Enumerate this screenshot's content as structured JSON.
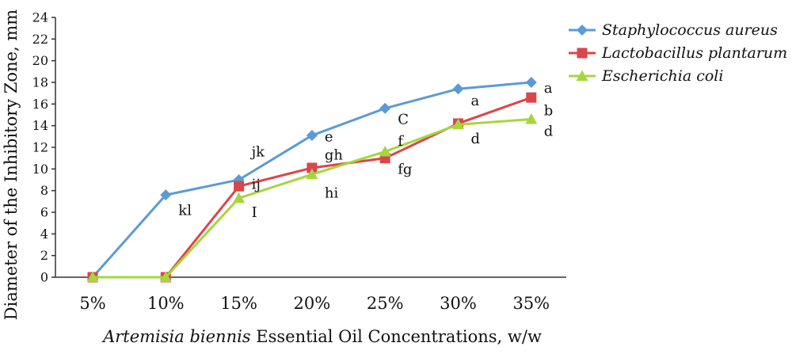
{
  "chart_data": {
    "type": "line",
    "categories": [
      "5%",
      "10%",
      "15%",
      "20%",
      "25%",
      "30%",
      "35%"
    ],
    "ylabel": "Diameter of the Inhibitory Zone, mm",
    "xlabel_italic": "Artemisia biennis",
    "xlabel_rest": " Essential Oil Concentrations, w/w",
    "ylim": [
      0,
      24
    ],
    "yticks": [
      0,
      2,
      4,
      6,
      8,
      10,
      12,
      14,
      16,
      18,
      20,
      22,
      24
    ],
    "grid": false,
    "legend_position": "top-right",
    "series": [
      {
        "name": "Staphylococcus aureus",
        "color": "#5b9bd5",
        "marker": "diamond",
        "values": [
          0,
          7.6,
          9.0,
          13.1,
          15.6,
          17.4,
          18.0
        ]
      },
      {
        "name": "Lactobacillus plantarum",
        "color": "#d9464b",
        "marker": "square",
        "values": [
          0,
          0,
          8.4,
          10.1,
          11.0,
          14.2,
          16.6
        ]
      },
      {
        "name": "Escherichia coli",
        "color": "#a6d63d",
        "marker": "triangle",
        "values": [
          0,
          0,
          7.3,
          9.5,
          11.6,
          14.1,
          14.6
        ]
      }
    ],
    "annotations": [
      {
        "text": "kl",
        "cat": 1,
        "y": 6.2
      },
      {
        "text": "jk",
        "cat": 2,
        "y": 11.6
      },
      {
        "text": "ij",
        "cat": 2,
        "y": 8.6
      },
      {
        "text": "I",
        "cat": 2,
        "y": 6.0
      },
      {
        "text": "e",
        "cat": 3,
        "y": 13.0
      },
      {
        "text": "gh",
        "cat": 3,
        "y": 11.3
      },
      {
        "text": "hi",
        "cat": 3,
        "y": 7.8
      },
      {
        "text": "C",
        "cat": 4,
        "y": 14.6
      },
      {
        "text": "f",
        "cat": 4,
        "y": 12.6
      },
      {
        "text": "fg",
        "cat": 4,
        "y": 10.0
      },
      {
        "text": "a",
        "cat": 5,
        "y": 16.3
      },
      {
        "text": "d",
        "cat": 5,
        "y": 12.8
      },
      {
        "text": "a",
        "cat": 6,
        "y": 17.5
      },
      {
        "text": "b",
        "cat": 6,
        "y": 15.4
      },
      {
        "text": "d",
        "cat": 6,
        "y": 13.5
      }
    ]
  }
}
